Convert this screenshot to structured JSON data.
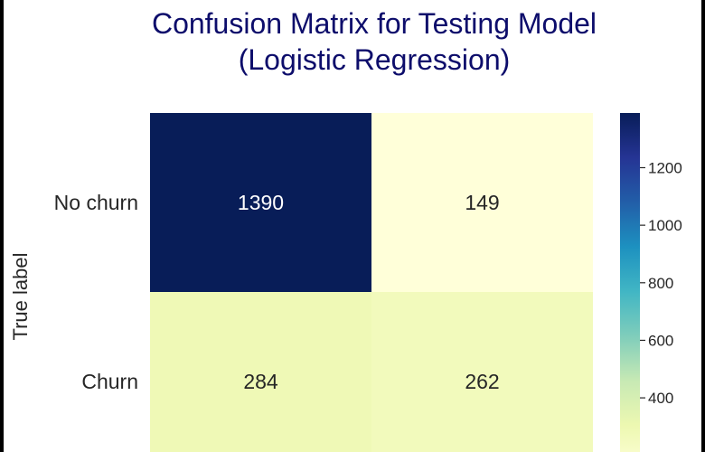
{
  "chart_data": {
    "type": "heatmap",
    "title_lines": [
      "Confusion Matrix for Testing Model",
      "(Logistic Regression)"
    ],
    "ylabel": "True label",
    "row_labels": [
      "No churn",
      "Churn"
    ],
    "col_labels": [
      "",
      ""
    ],
    "values": [
      [
        1390,
        149
      ],
      [
        284,
        262
      ]
    ],
    "colormap": "YlGnBu",
    "colorbar": {
      "ticks": [
        1200,
        1000,
        800,
        600,
        400
      ],
      "range": [
        149,
        1390
      ]
    }
  }
}
